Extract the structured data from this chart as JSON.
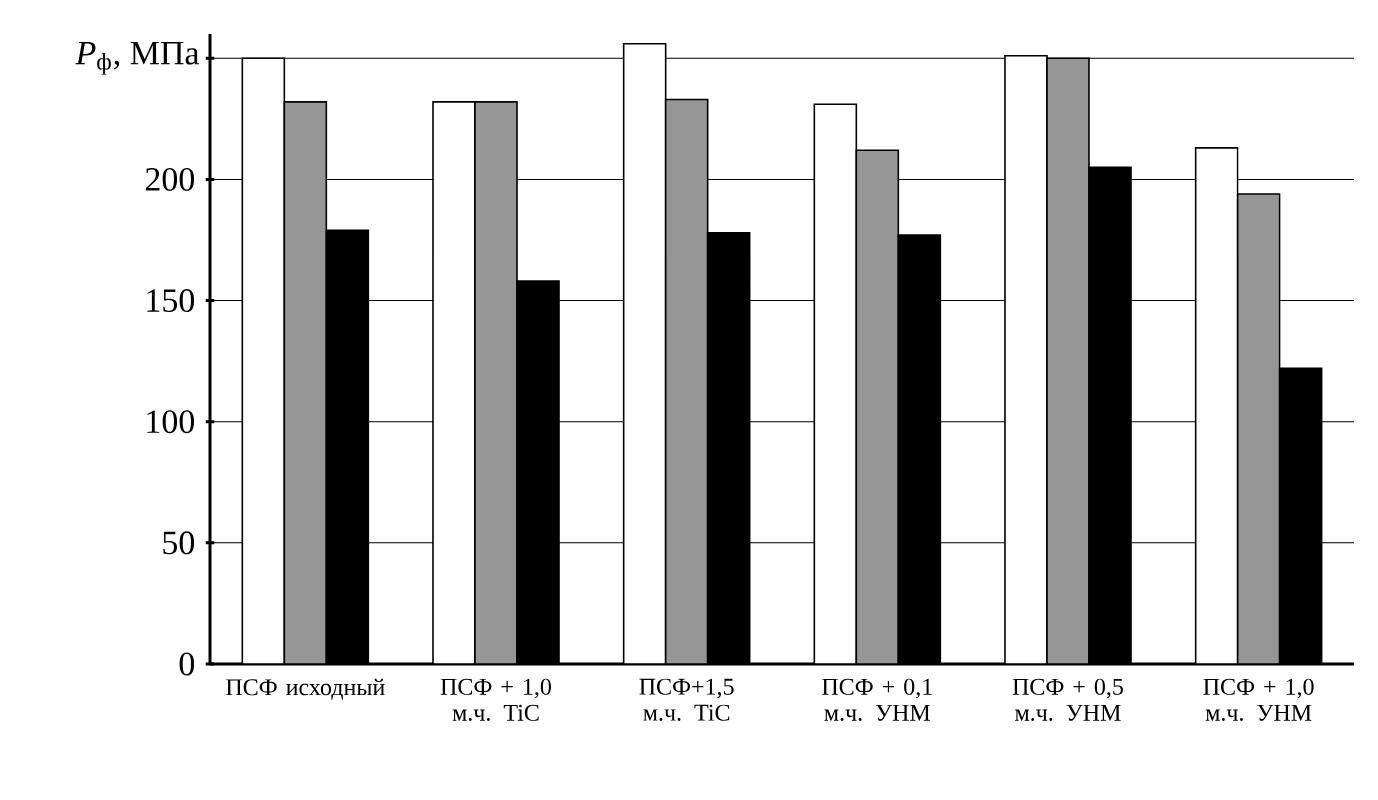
{
  "chart_data": {
    "type": "bar",
    "ylabel": "*P*$_{ф}$, МПа",
    "categories": [
      "ПСФ исходный",
      "ПСФ + 1,0 м.ч. TiC",
      "ПСФ+1,5 м.ч. TiC",
      "ПСФ + 0,1 м.ч. УНМ",
      "ПСФ + 0,5 м.ч. УНМ",
      "ПСФ + 1,0 м.ч. УНМ"
    ],
    "series": [
      {
        "color": "#ffffff",
        "values": [
          250,
          232,
          256,
          231,
          251,
          213
        ]
      },
      {
        "color": "#969696",
        "values": [
          232,
          232,
          233,
          212,
          250,
          194
        ]
      },
      {
        "color": "#000000",
        "values": [
          179,
          158,
          178,
          177,
          205,
          122
        ]
      }
    ],
    "ylim": [
      0,
      260
    ],
    "yticks": [
      0,
      50,
      100,
      150,
      200,
      {
        "value": 250,
        "label": null
      }
    ],
    "grid": "y"
  }
}
